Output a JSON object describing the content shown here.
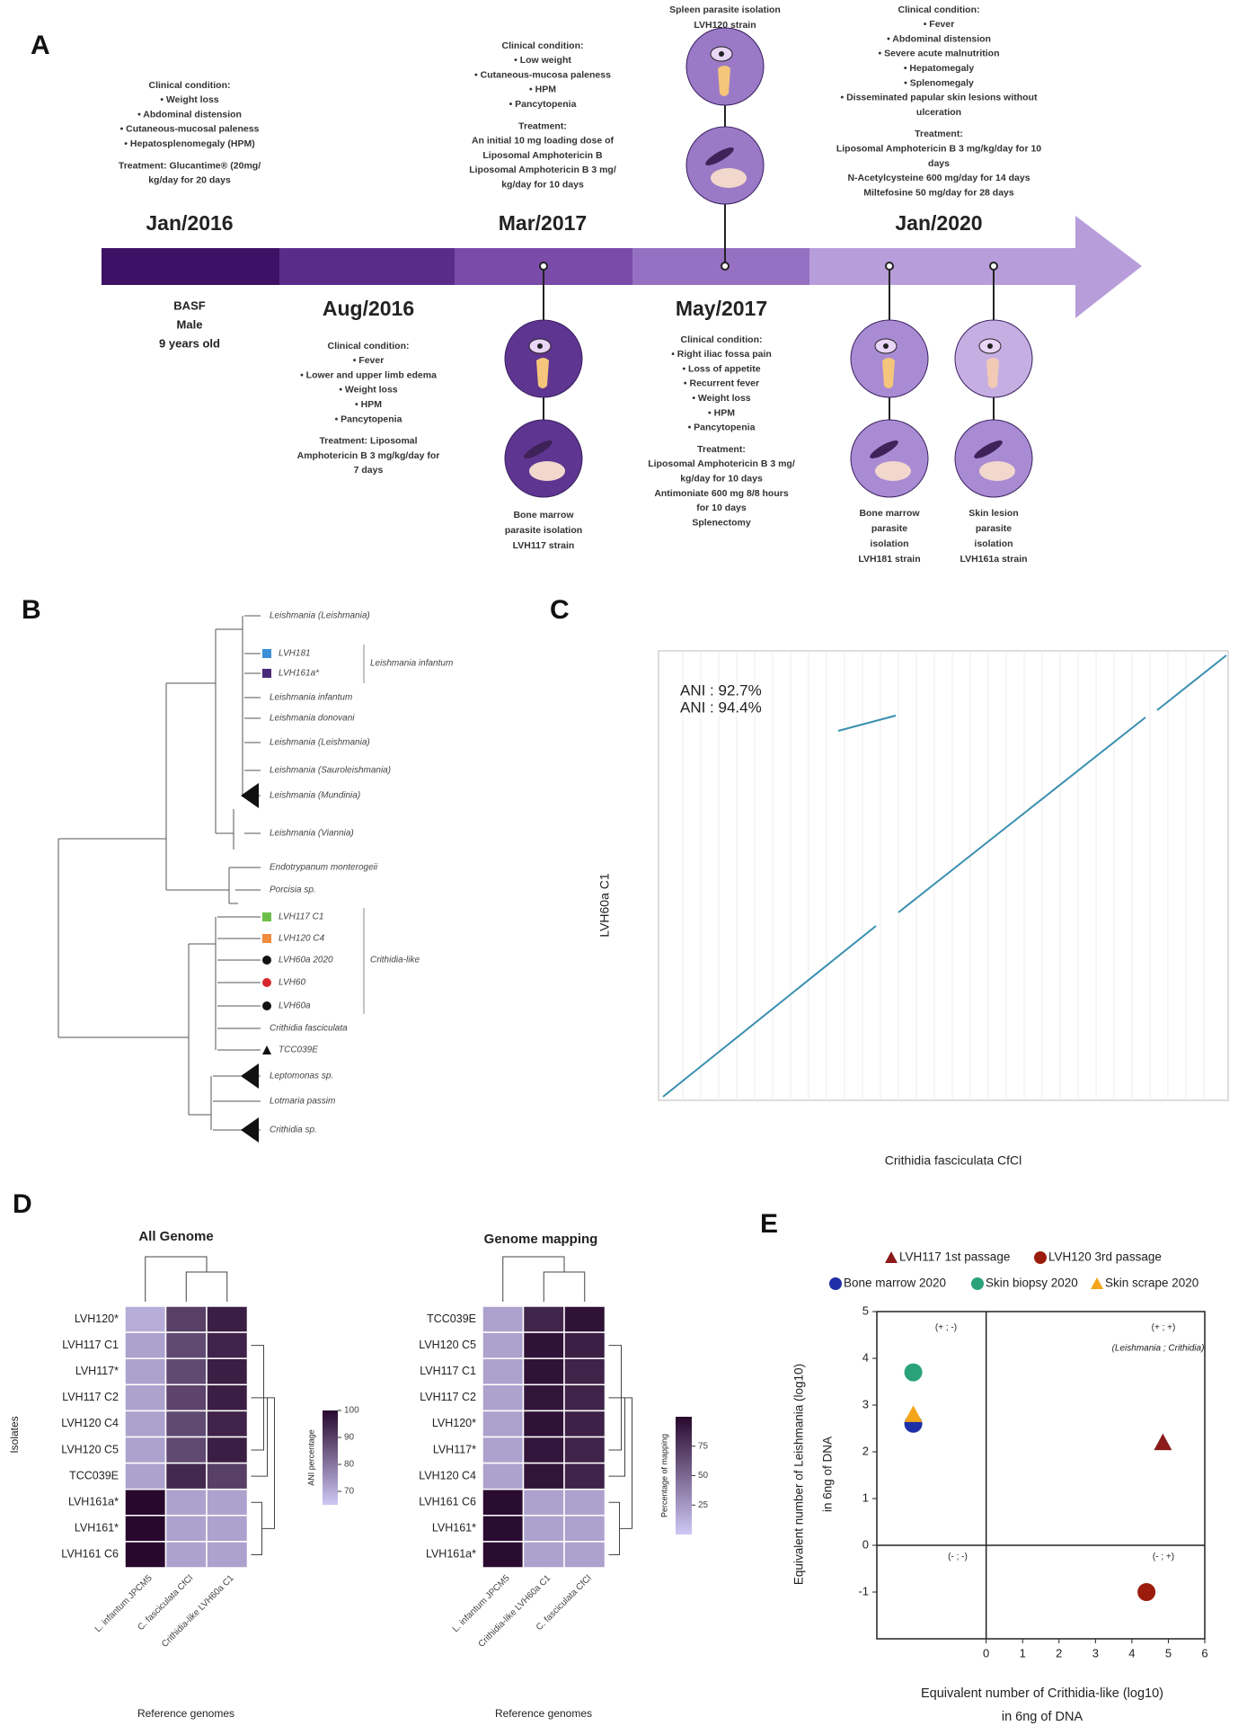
{
  "panel_a": {
    "label": "A",
    "patient": [
      "BASF",
      "Male",
      "9 years old"
    ],
    "events": [
      {
        "date": "Jan/2016",
        "notes": [
          "Clinical condition:",
          "• Weight loss",
          "• Abdominal distension",
          "• Cutaneous-mucosal paleness",
          "• Hepatosplenomegaly (HPM)",
          "Treatment: Glucantime® (20mg/",
          "kg/day for 20 days"
        ]
      },
      {
        "date": "Aug/2016",
        "notes": [
          "Clinical condition:",
          "• Fever",
          "• Lower and upper limb edema",
          "• Weight loss",
          "• HPM",
          "• Pancytopenia",
          "Treatment: Liposomal",
          "Amphotericin B 3 mg/kg/day for",
          "7 days"
        ]
      },
      {
        "date": "Mar/2017",
        "notes": [
          "Clinical condition:",
          "• Low weight",
          "• Cutaneous-mucosa paleness",
          "• HPM",
          "• Pancytopenia",
          "Treatment:",
          "An initial 10 mg loading dose of",
          "Liposomal Amphotericin B",
          "Liposomal Amphotericin B 3 mg/",
          "kg/day for 10 days"
        ]
      },
      {
        "date": "May/2017",
        "notes": [
          "Clinical condition:",
          "• Right iliac fossa pain",
          "• Loss of appetite",
          "• Recurrent fever",
          "• Weight loss",
          "• HPM",
          "• Pancytopenia",
          "Treatment:",
          "Liposomal Amphotericin B 3 mg/",
          "kg/day for 10 days",
          "Antimoniate 600 mg 8/8 hours",
          "for 10 days",
          "Splenectomy"
        ]
      },
      {
        "date": "Jan/2020",
        "notes": [
          "Clinical condition:",
          "• Fever",
          "• Abdominal distension",
          "• Severe acute malnutrition",
          "• Hepatomegaly",
          "• Splenomegaly",
          "• Disseminated papular skin lesions without",
          "ulceration",
          "Treatment:",
          "Liposomal Amphotericin B 3 mg/kg/day for 10",
          "days",
          "N-Acetylcysteine 600 mg/day for 14 days",
          "Miltefosine 50 mg/day for 28 days"
        ]
      }
    ],
    "isolations": [
      {
        "lines": [
          "Bone marrow",
          "parasite isolation",
          "LVH117 strain"
        ]
      },
      {
        "lines": [
          "Spleen parasite isolation",
          "LVH120 strain"
        ]
      },
      {
        "lines": [
          "Bone marrow",
          "parasite",
          "isolation",
          "LVH181 strain"
        ]
      },
      {
        "lines": [
          "Skin lesion",
          "parasite",
          "isolation",
          "LVH161a strain"
        ]
      }
    ]
  },
  "panel_b": {
    "label": "B",
    "leaves": [
      {
        "name": "Leishmania (Leishmania)"
      },
      {
        "name": "LVH181",
        "color": "#3b8fd9",
        "marker": "square"
      },
      {
        "name": "LVH161a*",
        "color": "#4b2a7b",
        "marker": "square"
      },
      {
        "name": "Leishmania infantum"
      },
      {
        "name": "Leishmania donovani"
      },
      {
        "name": "Leishmania (Leishmania)"
      },
      {
        "name": "Leishmania (Sauroleishmania)"
      },
      {
        "name": "Leishmania (Mundinia)",
        "marker": "collapsed"
      },
      {
        "name": "Leishmania (Viannia)"
      },
      {
        "name": "Endotrypanum monterogeii"
      },
      {
        "name": "Porcisia sp."
      },
      {
        "name": "LVH117 C1",
        "color": "#6cc04a",
        "marker": "square"
      },
      {
        "name": "LVH120 C4",
        "color": "#f08a3c",
        "marker": "square"
      },
      {
        "name": "LVH60a 2020",
        "color": "#111111",
        "marker": "circle"
      },
      {
        "name": "LVH60",
        "color": "#d9262b",
        "marker": "circle"
      },
      {
        "name": "LVH60a",
        "color": "#111111",
        "marker": "circle"
      },
      {
        "name": "Crithidia fasciculata"
      },
      {
        "name": "TCC039E",
        "color": "#111111",
        "marker": "triangle"
      },
      {
        "name": "Leptomonas sp.",
        "marker": "collapsed"
      },
      {
        "name": "Lotmaria passim"
      },
      {
        "name": "Crithidia sp.",
        "marker": "collapsed"
      }
    ],
    "groups": [
      "Leishmania infantum",
      "Crithidia-like"
    ]
  },
  "panel_c": {
    "label": "C",
    "annotations": [
      "ANI : 92.7%",
      "ANI : 94.4%"
    ],
    "xlabel": "Crithidia fasciculata CfCl",
    "ylabel": "LVH60a C1"
  },
  "panel_d": {
    "label": "D",
    "ylabel": "Isolates",
    "heatmaps": [
      {
        "title": "All Genome",
        "xlabel": "Reference genomes",
        "columns": [
          "L. infantum JPCM5",
          "C. fasciculata CfCl",
          "Crithidia-like LVH60a C1"
        ],
        "rows": [
          "LVH120*",
          "LVH117 C1",
          "LVH117*",
          "LVH117 C2",
          "LVH120 C4",
          "LVH120 C5",
          "TCC039E",
          "LVH161a*",
          "LVH161*",
          "LVH161 C6"
        ],
        "values": [
          [
            70,
            90,
            96
          ],
          [
            72,
            88,
            95
          ],
          [
            72,
            88,
            96
          ],
          [
            72,
            89,
            96
          ],
          [
            72,
            88,
            95
          ],
          [
            72,
            88,
            96
          ],
          [
            72,
            94,
            90
          ],
          [
            100,
            72,
            72
          ],
          [
            100,
            72,
            72
          ],
          [
            100,
            72,
            72
          ]
        ],
        "colorbar": {
          "title": "ANI percentage",
          "lim": [
            65,
            100
          ],
          "ticks": [
            70,
            80,
            90,
            100
          ]
        }
      },
      {
        "title": "Genome mapping",
        "xlabel": "Reference genomes",
        "columns": [
          "L. infantum JPCM5",
          "Crithidia-like LVH60a C1",
          "C. fasciculata CfCl"
        ],
        "rows": [
          "TCC039E",
          "LVH120 C5",
          "LVH117 C1",
          "LVH117 C2",
          "LVH120*",
          "LVH117*",
          "LVH120 C4",
          "LVH161 C6",
          "LVH161*",
          "LVH161a*"
        ],
        "values": [
          [
            20,
            85,
            95
          ],
          [
            20,
            95,
            88
          ],
          [
            20,
            95,
            86
          ],
          [
            20,
            94,
            86
          ],
          [
            20,
            95,
            87
          ],
          [
            20,
            93,
            86
          ],
          [
            20,
            94,
            86
          ],
          [
            98,
            20,
            20
          ],
          [
            98,
            20,
            20
          ],
          [
            98,
            20,
            20
          ]
        ],
        "colorbar": {
          "title": "Percentage of mapping",
          "lim": [
            0,
            100
          ],
          "ticks": [
            25,
            50,
            75
          ]
        }
      }
    ]
  },
  "panel_e": {
    "label": "E",
    "type": "scatter",
    "xlabel": [
      "Equivalent number of Crithidia-like (log10)",
      "in 6ng of DNA"
    ],
    "ylabel": [
      "Equivalent number of Leishmania (log10)",
      "in 6ng of DNA"
    ],
    "xlim": [
      -3,
      6
    ],
    "ylim": [
      -2,
      5
    ],
    "xticks": [
      0,
      1,
      2,
      3,
      4,
      5,
      6
    ],
    "yticks": [
      -1,
      0,
      1,
      2,
      3,
      4,
      5
    ],
    "quadrants": [
      "(+ ; -)",
      "(+ ; +)",
      "(Leishmania ; Crithidia)",
      "(- ; -)",
      "(- ; +)"
    ],
    "series": [
      {
        "name": "LVH117 1st passage",
        "color": "#8b1a1a",
        "marker": "triangle",
        "x": [
          4.85
        ],
        "values": [
          2.2
        ]
      },
      {
        "name": "LVH120 3rd passage",
        "color": "#9b1c0c",
        "marker": "circle",
        "x": [
          4.4
        ],
        "values": [
          -1
        ]
      },
      {
        "name": "Bone marrow 2020",
        "color": "#1f2fa8",
        "marker": "circle",
        "x": [
          -2
        ],
        "values": [
          2.6
        ]
      },
      {
        "name": "Skin biopsy 2020",
        "color": "#2aa37a",
        "marker": "circle",
        "x": [
          -2
        ],
        "values": [
          3.7
        ]
      },
      {
        "name": "Skin scrape 2020",
        "color": "#f4a51a",
        "marker": "triangle",
        "x": [
          -2
        ],
        "values": [
          2.8
        ]
      }
    ]
  }
}
